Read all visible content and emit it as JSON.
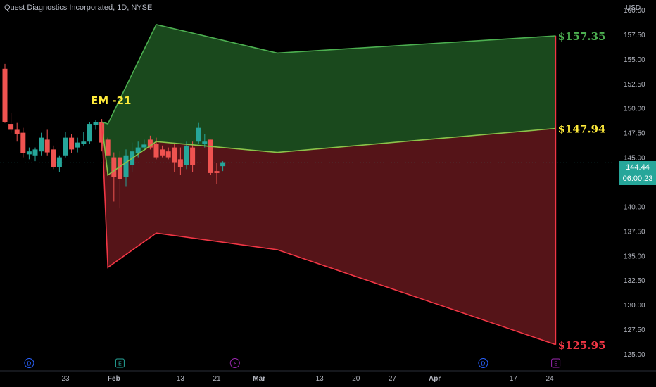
{
  "title": "Quest Diagnostics Incorporated, 1D, NYSE",
  "currency": "USD",
  "chart_data": {
    "type": "candlestick",
    "ylim": [
      123.5,
      161.0
    ],
    "y_ticks": [
      125.0,
      127.5,
      130.0,
      132.5,
      135.0,
      137.5,
      140.0,
      142.5,
      145.0,
      147.5,
      150.0,
      152.5,
      155.0,
      157.5,
      160.0
    ],
    "y_tick_labels": [
      "125.00",
      "127.50",
      "130.00",
      "132.50",
      "135.00",
      "137.50",
      "140.00",
      "142.50",
      "145.00",
      "147.50",
      "150.00",
      "152.50",
      "155.00",
      "157.50",
      "160.00"
    ],
    "x_labels": [
      "23",
      "Feb",
      "13",
      "21",
      "Mar",
      "13",
      "20",
      "27",
      "Apr",
      "17",
      "24"
    ],
    "x_label_index": [
      10,
      18,
      29,
      35,
      42,
      52,
      58,
      64,
      71,
      84,
      90
    ],
    "candles": [
      {
        "i": 0,
        "o": 154,
        "h": 154.5,
        "l": 148.5,
        "c": 148.6
      },
      {
        "i": 1,
        "o": 148.4,
        "h": 149.5,
        "l": 147.5,
        "c": 147.8
      },
      {
        "i": 2,
        "o": 147.8,
        "h": 148.5,
        "l": 146.6,
        "c": 147.4
      },
      {
        "i": 3,
        "o": 147.5,
        "h": 148.0,
        "l": 145.0,
        "c": 145.4
      },
      {
        "i": 4,
        "o": 145.3,
        "h": 146.0,
        "l": 144.8,
        "c": 145.6
      },
      {
        "i": 5,
        "o": 145.2,
        "h": 146.0,
        "l": 144.6,
        "c": 145.8
      },
      {
        "i": 6,
        "o": 145.6,
        "h": 147.5,
        "l": 145.2,
        "c": 147.0
      },
      {
        "i": 7,
        "o": 146.8,
        "h": 147.8,
        "l": 145.2,
        "c": 145.5
      },
      {
        "i": 8,
        "o": 145.8,
        "h": 146.2,
        "l": 143.8,
        "c": 144.0
      },
      {
        "i": 9,
        "o": 144.0,
        "h": 145.2,
        "l": 143.5,
        "c": 145.0
      },
      {
        "i": 10,
        "o": 145.2,
        "h": 147.6,
        "l": 145.0,
        "c": 147.0
      },
      {
        "i": 11,
        "o": 147.0,
        "h": 147.4,
        "l": 145.4,
        "c": 145.8
      },
      {
        "i": 12,
        "o": 146.0,
        "h": 147.0,
        "l": 145.5,
        "c": 146.5
      },
      {
        "i": 13,
        "o": 146.4,
        "h": 147.6,
        "l": 146.2,
        "c": 146.6
      },
      {
        "i": 14,
        "o": 146.6,
        "h": 148.6,
        "l": 146.4,
        "c": 148.4
      },
      {
        "i": 15,
        "o": 148.3,
        "h": 148.8,
        "l": 147.8,
        "c": 148.6
      },
      {
        "i": 16,
        "o": 148.6,
        "h": 148.9,
        "l": 145.6,
        "c": 146.5
      },
      {
        "i": 17,
        "o": 146.8,
        "h": 147.0,
        "l": 145.2,
        "c": 145.2
      },
      {
        "i": 18,
        "o": 145.0,
        "h": 145.5,
        "l": 140.5,
        "c": 143.0
      },
      {
        "i": 19,
        "o": 145.0,
        "h": 145.6,
        "l": 139.8,
        "c": 142.8
      },
      {
        "i": 20,
        "o": 143.0,
        "h": 145.8,
        "l": 142.0,
        "c": 145.2
      },
      {
        "i": 21,
        "o": 144.2,
        "h": 146.5,
        "l": 143.5,
        "c": 145.6
      },
      {
        "i": 22,
        "o": 145.4,
        "h": 146.6,
        "l": 145.0,
        "c": 146.0
      },
      {
        "i": 23,
        "o": 146.0,
        "h": 146.8,
        "l": 145.6,
        "c": 146.3
      },
      {
        "i": 24,
        "o": 146.8,
        "h": 147.2,
        "l": 145.8,
        "c": 146.0
      },
      {
        "i": 25,
        "o": 146.4,
        "h": 147.0,
        "l": 144.8,
        "c": 145.0
      },
      {
        "i": 26,
        "o": 145.8,
        "h": 146.2,
        "l": 145.0,
        "c": 145.2
      },
      {
        "i": 27,
        "o": 145.6,
        "h": 146.0,
        "l": 144.8,
        "c": 145.0
      },
      {
        "i": 28,
        "o": 146.0,
        "h": 146.4,
        "l": 143.5,
        "c": 144.5
      },
      {
        "i": 29,
        "o": 144.8,
        "h": 146.0,
        "l": 143.2,
        "c": 144.0
      },
      {
        "i": 30,
        "o": 144.2,
        "h": 146.6,
        "l": 143.8,
        "c": 146.2
      },
      {
        "i": 31,
        "o": 146.0,
        "h": 146.6,
        "l": 143.5,
        "c": 144.2
      },
      {
        "i": 32,
        "o": 146.6,
        "h": 148.5,
        "l": 146.4,
        "c": 148.0
      },
      {
        "i": 33,
        "o": 146.4,
        "h": 147.4,
        "l": 146.0,
        "c": 146.6
      },
      {
        "i": 34,
        "o": 146.8,
        "h": 146.8,
        "l": 143.2,
        "c": 143.4
      },
      {
        "i": 35,
        "o": 143.6,
        "h": 144.4,
        "l": 142.3,
        "c": 143.4
      },
      {
        "i": 36,
        "o": 144.1,
        "h": 144.6,
        "l": 143.6,
        "c": 144.5
      }
    ],
    "last_price": "144.44",
    "countdown": "06:00:23",
    "expected_move": {
      "label": "EM -21",
      "upper": [
        [
          16,
          148.6
        ],
        [
          17,
          148.4
        ],
        [
          25,
          158.5
        ],
        [
          45,
          155.6
        ],
        [
          91,
          157.35
        ]
      ],
      "mid": [
        [
          16,
          148.5
        ],
        [
          17,
          143.2
        ],
        [
          25,
          146.6
        ],
        [
          45,
          145.5
        ],
        [
          91,
          147.94
        ]
      ],
      "lower": [
        [
          16,
          148.5
        ],
        [
          17,
          133.8
        ],
        [
          25,
          137.3
        ],
        [
          45,
          135.6
        ],
        [
          91,
          125.95
        ]
      ],
      "upper_label": "$157.35",
      "mid_label": "$147.94",
      "lower_label": "$125.95"
    },
    "markers": [
      {
        "i": 4,
        "glyph": "D",
        "color": "#2962ff"
      },
      {
        "i": 19,
        "glyph": "E",
        "color": "#26a69a"
      },
      {
        "i": 38,
        "glyph": "⚡",
        "color": "#9c27b0"
      },
      {
        "i": 79,
        "glyph": "D",
        "color": "#2962ff"
      },
      {
        "i": 91,
        "glyph": "E",
        "color": "#9c27b0"
      }
    ],
    "colors": {
      "up": "#26a69a",
      "down": "#ef5350",
      "band_green_fill": "#1b4d1f",
      "band_red_fill": "#5a1519",
      "upper_line": "#4caf50",
      "mid_line": "#8bc34a",
      "lower_line": "#f23645",
      "em_label": "#ffeb3b",
      "axis_text": "#b2b5be"
    }
  }
}
